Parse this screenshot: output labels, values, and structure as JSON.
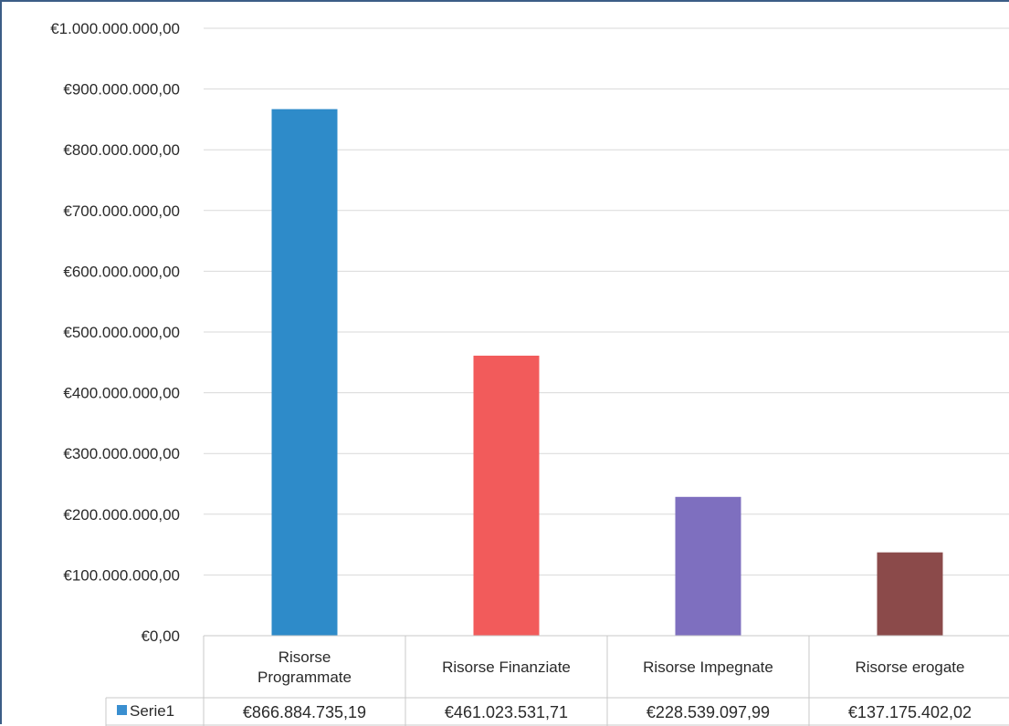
{
  "chart_data": {
    "type": "bar",
    "title": "",
    "xlabel": "",
    "ylabel": "",
    "categories": [
      [
        "Risorse",
        "Programmate"
      ],
      [
        "Risorse Finanziate"
      ],
      [
        "Risorse Impegnate"
      ],
      [
        "Risorse erogate"
      ]
    ],
    "series": [
      {
        "name": "Serie1",
        "values": [
          866884735.19,
          461023531.71,
          228539097.99,
          137175402.02
        ],
        "value_labels": [
          "€866.884.735,19",
          "€461.023.531,71",
          "€228.539.097,99",
          "€137.175.402,02"
        ]
      }
    ],
    "bar_colors": [
      "#2e8bc9",
      "#f25b5b",
      "#7e6fbf",
      "#8b4a4a"
    ],
    "ylim": [
      0,
      1000000000
    ],
    "yticks": [
      0,
      100000000,
      200000000,
      300000000,
      400000000,
      500000000,
      600000000,
      700000000,
      800000000,
      900000000,
      1000000000
    ],
    "ytick_labels": [
      "€0,00",
      "€100.000.000,00",
      "€200.000.000,00",
      "€300.000.000,00",
      "€400.000.000,00",
      "€500.000.000,00",
      "€600.000.000,00",
      "€700.000.000,00",
      "€800.000.000,00",
      "€900.000.000,00",
      "€1.000.000.000,00"
    ],
    "grid": true,
    "legend": "data-table",
    "legend_color": "#3a8fd0"
  }
}
